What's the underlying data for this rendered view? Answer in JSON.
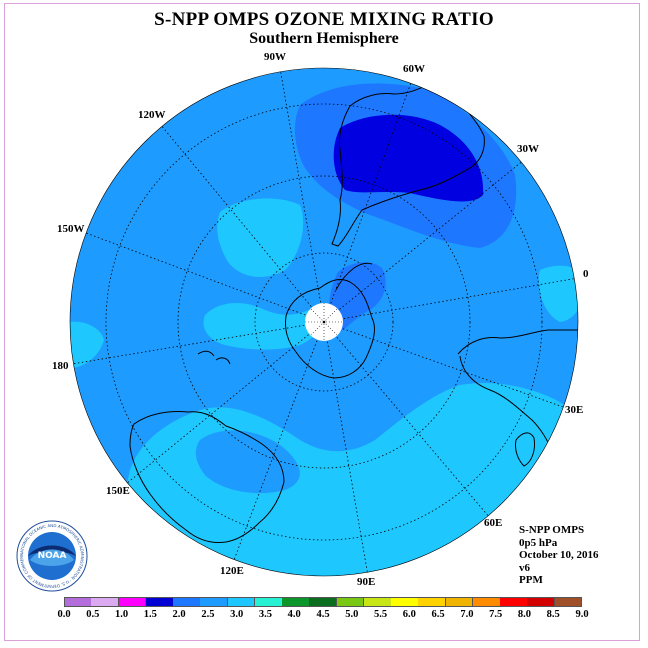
{
  "header": {
    "title": "S-NPP OMPS OZONE MIXING RATIO",
    "subtitle": "Southern Hemisphere"
  },
  "map": {
    "projection": "south-polar-stereographic",
    "longitude_labels": [
      "90W",
      "60W",
      "30W",
      "0",
      "30E",
      "60E",
      "90E",
      "120E",
      "150E",
      "180",
      "150W",
      "120W"
    ],
    "background_level_color": "#1690ff",
    "level_colors": {
      "1.5-2.0": "#0000e0",
      "2.0-2.5": "#1e78ff",
      "2.5-3.0": "#1e9bff",
      "3.0-3.5": "#1ec8ff"
    },
    "land_outline_color": "#000000"
  },
  "info": {
    "instrument": "S-NPP OMPS",
    "level": "0p5 hPa",
    "date": "October 10, 2016",
    "version": "v6",
    "units": "PPM"
  },
  "colorbar": {
    "labels": [
      "0.0",
      "0.5",
      "1.0",
      "1.5",
      "2.0",
      "2.5",
      "3.0",
      "3.5",
      "4.0",
      "4.5",
      "5.0",
      "5.5",
      "6.0",
      "6.5",
      "7.0",
      "7.5",
      "8.0",
      "8.5",
      "9.0"
    ],
    "colors": [
      "#b46edc",
      "#dcaaf0",
      "#ff00ff",
      "#0000d2",
      "#1e78ff",
      "#1e9bff",
      "#1ec8ff",
      "#28f0d2",
      "#0a9628",
      "#0a6e1e",
      "#78c814",
      "#c8e614",
      "#ffff00",
      "#ffd200",
      "#f0b400",
      "#ff8c00",
      "#ff0000",
      "#d20000",
      "#a05028"
    ]
  },
  "logo": {
    "text": "NOAA",
    "ring_text": "NATIONAL OCEANIC AND ATMOSPHERIC ADMINISTRATION · U.S. DEPARTMENT OF COMMERCE"
  }
}
